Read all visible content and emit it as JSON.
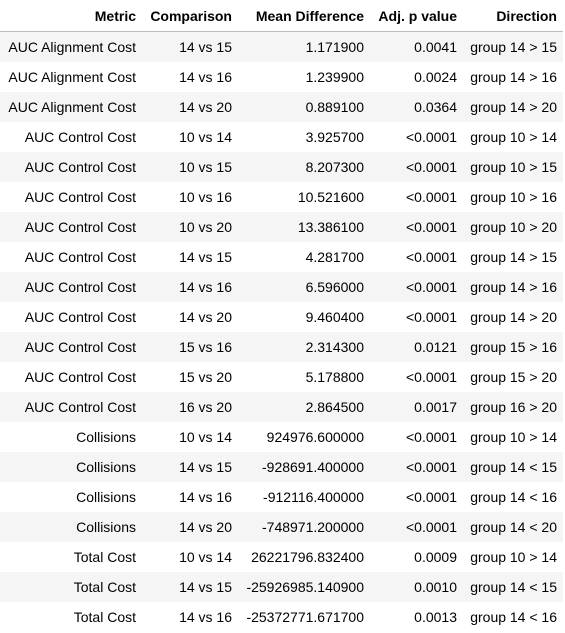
{
  "table": {
    "headers": [
      "Metric",
      "Comparison",
      "Mean Difference",
      "Adj. p value",
      "Direction"
    ],
    "rows": [
      [
        "AUC Alignment Cost",
        "14 vs 15",
        "1.171900",
        "0.0041",
        "group 14 > 15"
      ],
      [
        "AUC Alignment Cost",
        "14 vs 16",
        "1.239900",
        "0.0024",
        "group 14 > 16"
      ],
      [
        "AUC Alignment Cost",
        "14 vs 20",
        "0.889100",
        "0.0364",
        "group 14 > 20"
      ],
      [
        "AUC Control Cost",
        "10 vs 14",
        "3.925700",
        "<0.0001",
        "group 10 > 14"
      ],
      [
        "AUC Control Cost",
        "10 vs 15",
        "8.207300",
        "<0.0001",
        "group 10 > 15"
      ],
      [
        "AUC Control Cost",
        "10 vs 16",
        "10.521600",
        "<0.0001",
        "group 10 > 16"
      ],
      [
        "AUC Control Cost",
        "10 vs 20",
        "13.386100",
        "<0.0001",
        "group 10 > 20"
      ],
      [
        "AUC Control Cost",
        "14 vs 15",
        "4.281700",
        "<0.0001",
        "group 14 > 15"
      ],
      [
        "AUC Control Cost",
        "14 vs 16",
        "6.596000",
        "<0.0001",
        "group 14 > 16"
      ],
      [
        "AUC Control Cost",
        "14 vs 20",
        "9.460400",
        "<0.0001",
        "group 14 > 20"
      ],
      [
        "AUC Control Cost",
        "15 vs 16",
        "2.314300",
        "0.0121",
        "group 15 > 16"
      ],
      [
        "AUC Control Cost",
        "15 vs 20",
        "5.178800",
        "<0.0001",
        "group 15 > 20"
      ],
      [
        "AUC Control Cost",
        "16 vs 20",
        "2.864500",
        "0.0017",
        "group 16 > 20"
      ],
      [
        "Collisions",
        "10 vs 14",
        "924976.600000",
        "<0.0001",
        "group 10 > 14"
      ],
      [
        "Collisions",
        "14 vs 15",
        "-928691.400000",
        "<0.0001",
        "group 14 < 15"
      ],
      [
        "Collisions",
        "14 vs 16",
        "-912116.400000",
        "<0.0001",
        "group 14 < 16"
      ],
      [
        "Collisions",
        "14 vs 20",
        "-748971.200000",
        "<0.0001",
        "group 14 < 20"
      ],
      [
        "Total Cost",
        "10 vs 14",
        "26221796.832400",
        "0.0009",
        "group 10 > 14"
      ],
      [
        "Total Cost",
        "14 vs 15",
        "-25926985.140900",
        "0.0010",
        "group 14 < 15"
      ],
      [
        "Total Cost",
        "14 vs 16",
        "-25372771.671700",
        "0.0013",
        "group 14 < 16"
      ]
    ]
  }
}
